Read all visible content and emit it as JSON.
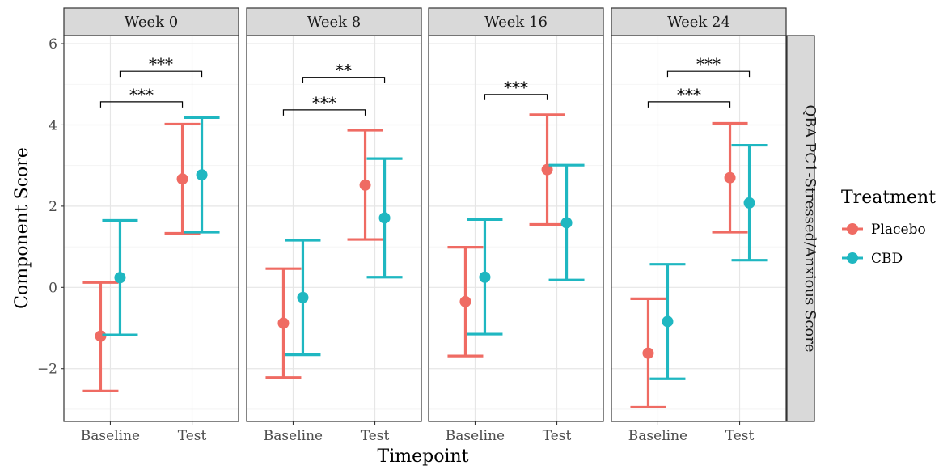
{
  "chart_data": {
    "type": "errorbar",
    "ylabel": "Component Score",
    "xlabel": "Timepoint",
    "ylim": [
      -3.3,
      6.2
    ],
    "yticks": [
      -2,
      0,
      2,
      4,
      6
    ],
    "ytick_labels": [
      "−2",
      "0",
      "2",
      "4",
      "6"
    ],
    "categories": [
      "Baseline",
      "Test"
    ],
    "row_strip": "QBA PC1-Stressed/Anxious Score",
    "legend": {
      "title": "Treatment",
      "placement": "right",
      "items": [
        {
          "name": "Placebo",
          "color": "#ef6b63"
        },
        {
          "name": "CBD",
          "color": "#1fb7c1"
        }
      ]
    },
    "series": [
      {
        "name": "Placebo",
        "color": "#ef6b63"
      },
      {
        "name": "CBD",
        "color": "#1fb7c1"
      }
    ],
    "panels": [
      {
        "label": "Week 0",
        "points": {
          "Placebo": [
            {
              "x": "Baseline",
              "y": -1.2,
              "lo": -2.55,
              "hi": 0.12
            },
            {
              "x": "Test",
              "y": 2.67,
              "lo": 1.33,
              "hi": 4.02
            }
          ],
          "CBD": [
            {
              "x": "Baseline",
              "y": 0.24,
              "lo": -1.17,
              "hi": 1.65
            },
            {
              "x": "Test",
              "y": 2.77,
              "lo": 1.36,
              "hi": 4.18
            }
          ]
        },
        "annotations": [
          {
            "text": "***",
            "from": [
              "Baseline",
              "Placebo"
            ],
            "to": [
              "Test",
              "Placebo"
            ],
            "y": 4.57
          },
          {
            "text": "***",
            "from": [
              "Baseline",
              "CBD"
            ],
            "to": [
              "Test",
              "CBD"
            ],
            "y": 5.32
          }
        ]
      },
      {
        "label": "Week 8",
        "points": {
          "Placebo": [
            {
              "x": "Baseline",
              "y": -0.88,
              "lo": -2.22,
              "hi": 0.46
            },
            {
              "x": "Test",
              "y": 2.52,
              "lo": 1.18,
              "hi": 3.87
            }
          ],
          "CBD": [
            {
              "x": "Baseline",
              "y": -0.25,
              "lo": -1.66,
              "hi": 1.16
            },
            {
              "x": "Test",
              "y": 1.71,
              "lo": 0.25,
              "hi": 3.17
            }
          ]
        },
        "annotations": [
          {
            "text": "***",
            "from": [
              "Baseline",
              "Placebo"
            ],
            "to": [
              "Test",
              "Placebo"
            ],
            "y": 4.37
          },
          {
            "text": "**",
            "from": [
              "Baseline",
              "CBD"
            ],
            "to": [
              "Test",
              "CBD"
            ],
            "y": 5.17
          }
        ]
      },
      {
        "label": "Week 16",
        "points": {
          "Placebo": [
            {
              "x": "Baseline",
              "y": -0.35,
              "lo": -1.69,
              "hi": 0.99
            },
            {
              "x": "Test",
              "y": 2.9,
              "lo": 1.55,
              "hi": 4.25
            }
          ],
          "CBD": [
            {
              "x": "Baseline",
              "y": 0.25,
              "lo": -1.15,
              "hi": 1.67
            },
            {
              "x": "Test",
              "y": 1.59,
              "lo": 0.18,
              "hi": 3.01
            }
          ]
        },
        "annotations": [
          {
            "text": "***",
            "from": [
              "Baseline",
              "CBD"
            ],
            "to": [
              "Test",
              "Placebo"
            ],
            "y": 4.75
          }
        ]
      },
      {
        "label": "Week 24",
        "points": {
          "Placebo": [
            {
              "x": "Baseline",
              "y": -1.62,
              "lo": -2.95,
              "hi": -0.28
            },
            {
              "x": "Test",
              "y": 2.7,
              "lo": 1.36,
              "hi": 4.04
            }
          ],
          "CBD": [
            {
              "x": "Baseline",
              "y": -0.84,
              "lo": -2.25,
              "hi": 0.57
            },
            {
              "x": "Test",
              "y": 2.08,
              "lo": 0.67,
              "hi": 3.5
            }
          ]
        },
        "annotations": [
          {
            "text": "***",
            "from": [
              "Baseline",
              "Placebo"
            ],
            "to": [
              "Test",
              "Placebo"
            ],
            "y": 4.57
          },
          {
            "text": "***",
            "from": [
              "Baseline",
              "CBD"
            ],
            "to": [
              "Test",
              "CBD"
            ],
            "y": 5.32
          }
        ]
      }
    ]
  }
}
